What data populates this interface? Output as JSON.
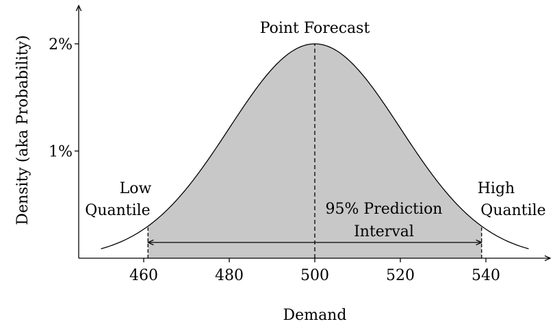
{
  "chart_data": {
    "type": "area",
    "distribution": "normal",
    "mean": 500,
    "std_dev": 20,
    "peak_density": "2%",
    "x_range": [
      445,
      555
    ],
    "y_range": [
      0,
      2.4
    ],
    "xlabel": "Demand",
    "ylabel": "Density (aka Probability)",
    "x_ticks": [
      {
        "value": 460,
        "label": "460"
      },
      {
        "value": 480,
        "label": "480"
      },
      {
        "value": 500,
        "label": "500"
      },
      {
        "value": 520,
        "label": "520"
      },
      {
        "value": 540,
        "label": "540"
      }
    ],
    "y_ticks": [
      {
        "value": 1,
        "label": "1%"
      },
      {
        "value": 2,
        "label": "2%"
      }
    ],
    "curve_range": [
      450,
      550
    ],
    "shaded_range": [
      461,
      539
    ],
    "low_quantile": 461,
    "high_quantile": 539,
    "point_forecast": 500,
    "colors": {
      "shade": "#c8c8c8",
      "line": "#000000"
    },
    "annotations": {
      "point_forecast": "Point Forecast",
      "low_quantile": [
        "Low",
        "Quantile"
      ],
      "high_quantile": [
        "High",
        "Quantile"
      ],
      "interval": [
        "95% Prediction",
        "Interval"
      ]
    }
  }
}
